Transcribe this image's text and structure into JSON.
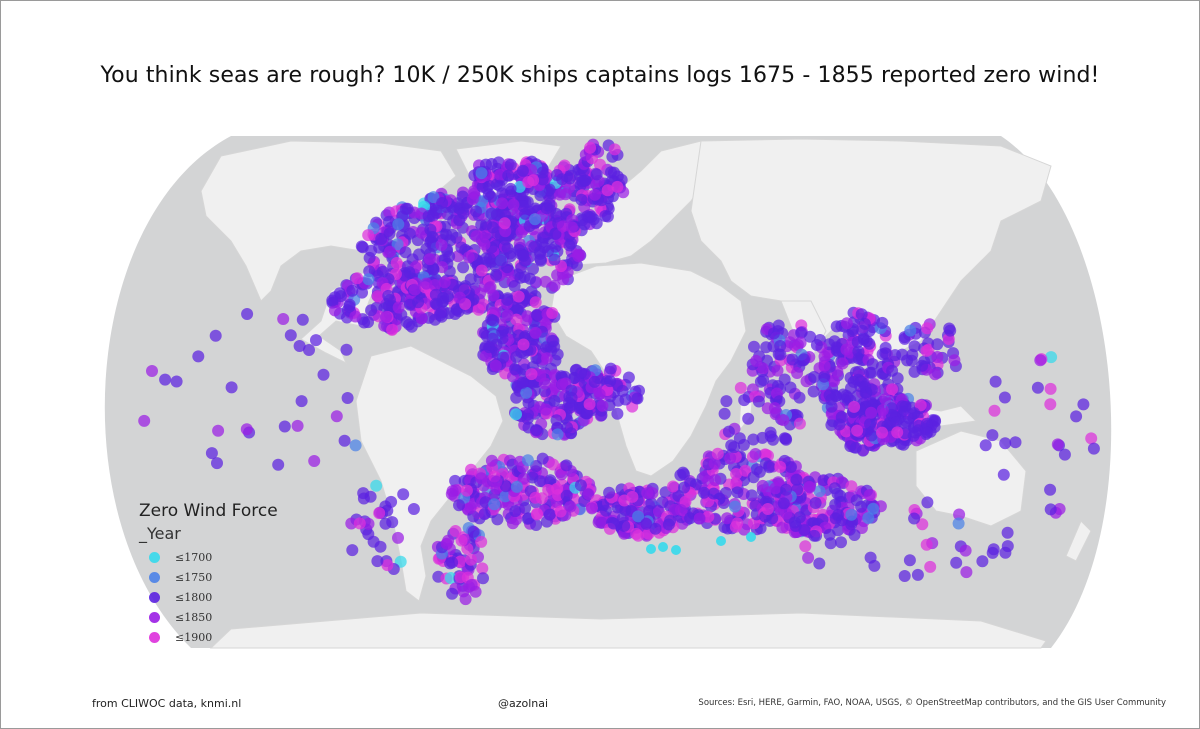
{
  "title": "You think seas are rough? 10K / 250K ships captains logs 1675 - 1855 reported zero wind!",
  "legend": {
    "title": "Zero Wind Force",
    "field": "_Year",
    "items": [
      {
        "label": "≤1700",
        "color": "#35d9ec"
      },
      {
        "label": "≤1750",
        "color": "#4b82e8"
      },
      {
        "label": "≤1800",
        "color": "#5b21e0"
      },
      {
        "label": "≤1850",
        "color": "#9a1de4"
      },
      {
        "label": "≤1900",
        "color": "#dd2fdc"
      }
    ]
  },
  "footer": {
    "left": "from CLIWOC data, knmi.nl",
    "middle": "@azolnai",
    "right": "Sources: Esri, HERE, Garmin, FAO, NOAA, USGS, © OpenStreetMap contributors, and the GIS User Community"
  },
  "colors": {
    "ocean": "#d3d4d5",
    "land": "#f0f0f0",
    "border": "#d6d6d6"
  },
  "map": {
    "projection": "robinson",
    "point_density": [
      {
        "region": "North Atlantic",
        "density": "very high"
      },
      {
        "region": "English Channel & North Sea",
        "density": "very high"
      },
      {
        "region": "Caribbean",
        "density": "high"
      },
      {
        "region": "Equatorial Atlantic",
        "density": "high"
      },
      {
        "region": "South Atlantic to Cape of Good Hope",
        "density": "high"
      },
      {
        "region": "Southern Indian Ocean route",
        "density": "high"
      },
      {
        "region": "East Indies / Indonesian waters",
        "density": "high"
      },
      {
        "region": "Bay of Bengal",
        "density": "medium"
      },
      {
        "region": "Pacific Ocean",
        "density": "sparse"
      }
    ]
  }
}
